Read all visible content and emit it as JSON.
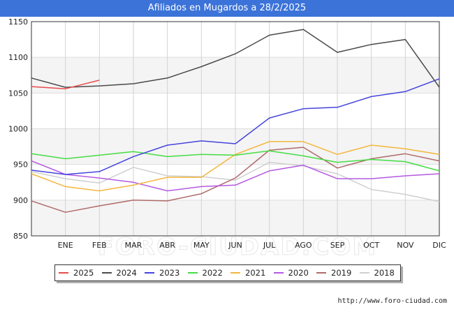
{
  "title": "Afiliados en Mugardos a 28/2/2025",
  "source": "http://www.foro-ciudad.com",
  "watermark": "FORO-CIUDAD.COM",
  "chart_data": {
    "type": "line",
    "title": "Afiliados en Mugardos a 28/2/2025",
    "xlabel": "",
    "ylabel": "",
    "x": [
      "",
      "ENE",
      "FEB",
      "MAR",
      "ABR",
      "MAY",
      "JUN",
      "JUL",
      "AGO",
      "SEP",
      "OCT",
      "NOV",
      "DIC"
    ],
    "y_ticks": [
      850,
      900,
      950,
      1000,
      1050,
      1100,
      1150
    ],
    "ylim": [
      850,
      1150
    ],
    "grid": true,
    "legend_position": "bottom",
    "series": [
      {
        "name": "2025",
        "color": "#ea4a4a",
        "values": [
          1059,
          1056,
          1068,
          null,
          null,
          null,
          null,
          null,
          null,
          null,
          null,
          null,
          null
        ]
      },
      {
        "name": "2024",
        "color": "#4a4a4a",
        "values": [
          1071,
          1058,
          1060,
          1063,
          1071,
          1087,
          1105,
          1131,
          1139,
          1107,
          1118,
          1125,
          1058
        ]
      },
      {
        "name": "2023",
        "color": "#4444dd",
        "values": [
          942,
          936,
          940,
          961,
          977,
          983,
          979,
          1015,
          1028,
          1030,
          1045,
          1052,
          1070
        ]
      },
      {
        "name": "2022",
        "color": "#44dd44",
        "values": [
          965,
          958,
          963,
          968,
          961,
          964,
          963,
          969,
          962,
          953,
          957,
          954,
          941
        ]
      },
      {
        "name": "2021",
        "color": "#f4b63c",
        "values": [
          937,
          919,
          913,
          921,
          932,
          932,
          964,
          982,
          982,
          964,
          977,
          972,
          964
        ]
      },
      {
        "name": "2020",
        "color": "#b459e0",
        "values": [
          955,
          936,
          931,
          925,
          913,
          919,
          921,
          941,
          949,
          930,
          930,
          934,
          937
        ]
      },
      {
        "name": "2019",
        "color": "#b06a6a",
        "values": [
          899,
          883,
          892,
          900,
          899,
          909,
          931,
          970,
          974,
          945,
          958,
          965,
          955
        ]
      },
      {
        "name": "2018",
        "color": "#cfcfcf",
        "values": [
          940,
          930,
          924,
          946,
          934,
          933,
          928,
          953,
          948,
          937,
          915,
          908,
          898
        ]
      }
    ]
  }
}
